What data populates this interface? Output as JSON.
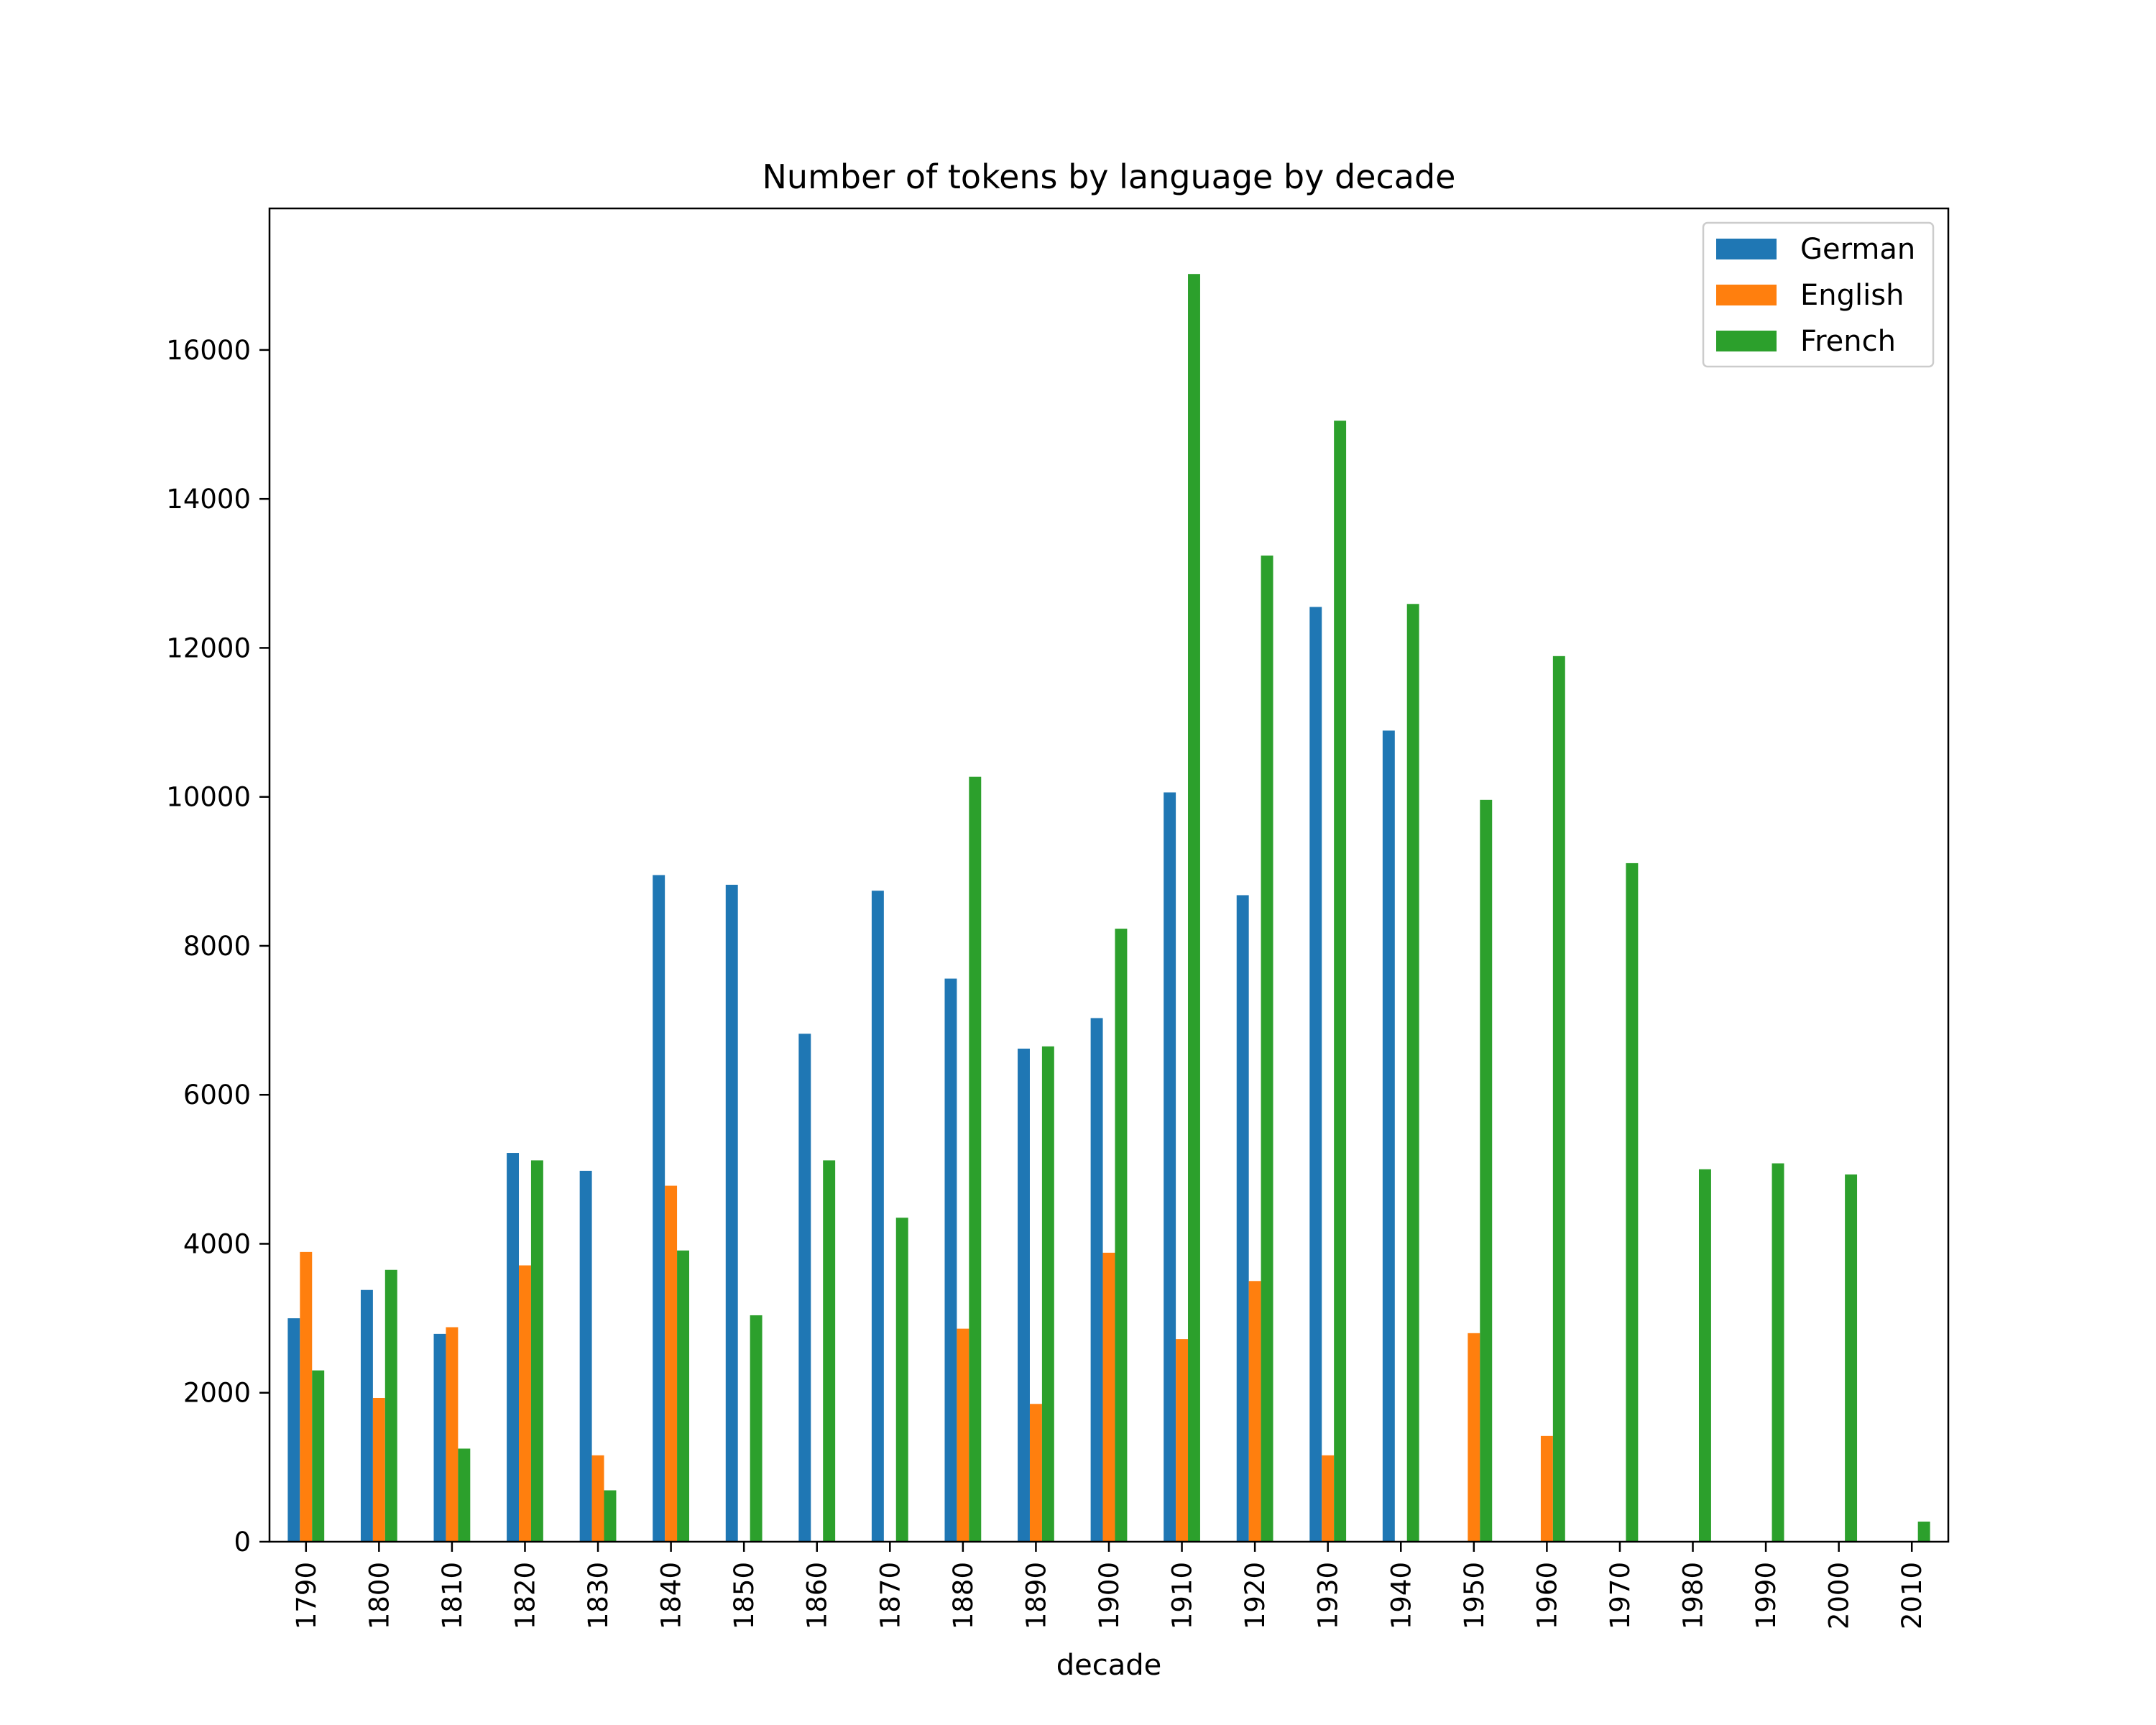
{
  "chart_data": {
    "type": "bar",
    "title": "Number of tokens by language by decade",
    "xlabel": "decade",
    "ylabel": "",
    "ylim": [
      0,
      17900
    ],
    "yticks": [
      "0",
      "2000",
      "4000",
      "6000",
      "8000",
      "10000",
      "12000",
      "14000",
      "16000"
    ],
    "categories": [
      "1790",
      "1800",
      "1810",
      "1820",
      "1830",
      "1840",
      "1850",
      "1860",
      "1870",
      "1880",
      "1890",
      "1900",
      "1910",
      "1920",
      "1930",
      "1940",
      "1950",
      "1960",
      "1970",
      "1980",
      "1990",
      "2000",
      "2010"
    ],
    "series": [
      {
        "name": "German",
        "color": "#1f77b4",
        "values": [
          3000,
          3380,
          2790,
          5220,
          4980,
          8950,
          8820,
          6820,
          8740,
          7560,
          6620,
          7030,
          10060,
          8680,
          12550,
          10890,
          0,
          0,
          0,
          0,
          0,
          0,
          0
        ]
      },
      {
        "name": "English",
        "color": "#ff7f0e",
        "values": [
          3890,
          1930,
          2880,
          3710,
          1160,
          4780,
          0,
          0,
          0,
          2860,
          1850,
          3880,
          2720,
          3500,
          1160,
          0,
          2800,
          1420,
          0,
          0,
          0,
          0,
          0
        ]
      },
      {
        "name": "French",
        "color": "#2ca02c",
        "values": [
          2300,
          3650,
          1250,
          5120,
          690,
          3910,
          3040,
          5120,
          4350,
          10270,
          6650,
          8230,
          17020,
          13240,
          15050,
          12590,
          9960,
          11890,
          9110,
          5000,
          5080,
          4930,
          270
        ]
      }
    ],
    "legend_position": "top-right",
    "grid": false
  }
}
